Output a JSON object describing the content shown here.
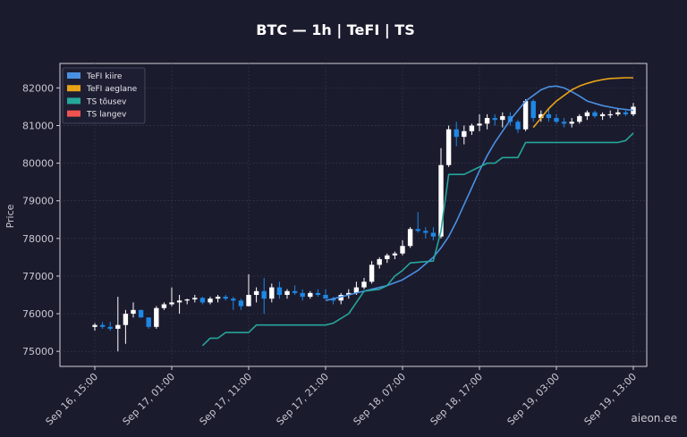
{
  "chart_data": {
    "type": "candlestick",
    "title": "BTC — 1h  |  TeFI  |  TS",
    "ylabel": "Price",
    "xlabel": "",
    "ylim": [
      74600,
      82650
    ],
    "y_ticks": [
      75000,
      76000,
      77000,
      78000,
      79000,
      80000,
      81000,
      82000
    ],
    "x_ticks": [
      "Sep 16, 15:00",
      "Sep 17, 01:00",
      "Sep 17, 11:00",
      "Sep 17, 21:00",
      "Sep 18, 07:00",
      "Sep 18, 17:00",
      "Sep 19, 03:00",
      "Sep 19, 13:00"
    ],
    "x_tick_index": [
      0,
      10,
      20,
      30,
      40,
      50,
      60,
      70
    ],
    "grid": true,
    "legend_position": "top-left",
    "legend": [
      {
        "label": "TeFI kiire",
        "color": "#4a90e2"
      },
      {
        "label": "TeFI aeglane",
        "color": "#e8a317"
      },
      {
        "label": "TS tõusev",
        "color": "#26a69a"
      },
      {
        "label": "TS langev",
        "color": "#ef5350"
      }
    ],
    "candle_colors": {
      "up": "#ffffff",
      "down": "#1e88e5"
    },
    "candles": [
      [
        75650,
        75750,
        75550,
        75700
      ],
      [
        75700,
        75780,
        75600,
        75650
      ],
      [
        75650,
        75780,
        75550,
        75600
      ],
      [
        75600,
        76450,
        75000,
        75700
      ],
      [
        75700,
        76100,
        75200,
        76000
      ],
      [
        76000,
        76300,
        75900,
        76100
      ],
      [
        76100,
        76100,
        75900,
        75900
      ],
      [
        75900,
        75900,
        75600,
        75650
      ],
      [
        75650,
        76200,
        75600,
        76150
      ],
      [
        76150,
        76300,
        76100,
        76250
      ],
      [
        76250,
        76700,
        76200,
        76300
      ],
      [
        76300,
        76500,
        76000,
        76350
      ],
      [
        76350,
        76400,
        76250,
        76380
      ],
      [
        76380,
        76500,
        76300,
        76420
      ],
      [
        76420,
        76450,
        76250,
        76300
      ],
      [
        76300,
        76450,
        76250,
        76400
      ],
      [
        76400,
        76500,
        76300,
        76450
      ],
      [
        76450,
        76500,
        76350,
        76400
      ],
      [
        76400,
        76450,
        76100,
        76350
      ],
      [
        76350,
        76400,
        76100,
        76200
      ],
      [
        76200,
        77050,
        76200,
        76500
      ],
      [
        76500,
        76700,
        76300,
        76600
      ],
      [
        76600,
        76950,
        76000,
        76400
      ],
      [
        76400,
        76800,
        76300,
        76700
      ],
      [
        76700,
        76850,
        76400,
        76500
      ],
      [
        76500,
        76650,
        76400,
        76600
      ],
      [
        76600,
        76750,
        76500,
        76550
      ],
      [
        76550,
        76650,
        76350,
        76450
      ],
      [
        76450,
        76600,
        76400,
        76550
      ],
      [
        76550,
        76650,
        76450,
        76500
      ],
      [
        76500,
        76650,
        76400,
        76400
      ],
      [
        76400,
        76450,
        76250,
        76350
      ],
      [
        76350,
        76550,
        76250,
        76500
      ],
      [
        76500,
        76650,
        76400,
        76550
      ],
      [
        76550,
        76850,
        76500,
        76700
      ],
      [
        76700,
        76950,
        76650,
        76850
      ],
      [
        76850,
        77400,
        76800,
        77300
      ],
      [
        77300,
        77500,
        77200,
        77450
      ],
      [
        77450,
        77600,
        77350,
        77550
      ],
      [
        77550,
        77650,
        77450,
        77600
      ],
      [
        77600,
        77950,
        77550,
        77800
      ],
      [
        77800,
        78300,
        77750,
        78250
      ],
      [
        78250,
        78700,
        78150,
        78200
      ],
      [
        78200,
        78300,
        78000,
        78150
      ],
      [
        78150,
        78300,
        77950,
        78050
      ],
      [
        78050,
        80400,
        78000,
        79950
      ],
      [
        79950,
        81000,
        79900,
        80900
      ],
      [
        80900,
        81100,
        80450,
        80700
      ],
      [
        80700,
        81000,
        80500,
        80850
      ],
      [
        80850,
        81050,
        80750,
        81000
      ],
      [
        81000,
        81300,
        80850,
        81050
      ],
      [
        81050,
        81300,
        80900,
        81200
      ],
      [
        81200,
        81300,
        81000,
        81150
      ],
      [
        81150,
        81350,
        80950,
        81250
      ],
      [
        81250,
        81350,
        81000,
        81100
      ],
      [
        81100,
        81150,
        80800,
        80900
      ],
      [
        80900,
        81700,
        80850,
        81650
      ],
      [
        81650,
        81700,
        81100,
        81200
      ],
      [
        81200,
        81400,
        81100,
        81300
      ],
      [
        81300,
        81450,
        81100,
        81200
      ],
      [
        81200,
        81300,
        81050,
        81100
      ],
      [
        81100,
        81200,
        80950,
        81050
      ],
      [
        81050,
        81200,
        80950,
        81100
      ],
      [
        81100,
        81300,
        81050,
        81250
      ],
      [
        81250,
        81400,
        81150,
        81350
      ],
      [
        81350,
        81400,
        81200,
        81250
      ],
      [
        81250,
        81350,
        81150,
        81300
      ],
      [
        81300,
        81400,
        81200,
        81300
      ],
      [
        81300,
        81450,
        81250,
        81350
      ],
      [
        81350,
        81400,
        81250,
        81300
      ],
      [
        81300,
        81600,
        81250,
        81500
      ]
    ],
    "series": [
      {
        "name": "TeFI kiire",
        "color": "#4a90e2",
        "points": [
          [
            30,
            76350
          ],
          [
            32,
            76450
          ],
          [
            34,
            76550
          ],
          [
            36,
            76650
          ],
          [
            38,
            76750
          ],
          [
            40,
            76900
          ],
          [
            42,
            77150
          ],
          [
            44,
            77500
          ],
          [
            45,
            77750
          ],
          [
            46,
            78050
          ],
          [
            47,
            78450
          ],
          [
            48,
            78900
          ],
          [
            49,
            79350
          ],
          [
            50,
            79800
          ],
          [
            51,
            80200
          ],
          [
            52,
            80550
          ],
          [
            53,
            80850
          ],
          [
            54,
            81150
          ],
          [
            55,
            81400
          ],
          [
            56,
            81650
          ],
          [
            57,
            81800
          ],
          [
            58,
            81950
          ],
          [
            59,
            82030
          ],
          [
            60,
            82050
          ],
          [
            61,
            82000
          ],
          [
            62,
            81900
          ],
          [
            63,
            81780
          ],
          [
            64,
            81650
          ],
          [
            66,
            81530
          ],
          [
            68,
            81450
          ],
          [
            70,
            81400
          ]
        ]
      },
      {
        "name": "TeFI aeglane",
        "color": "#e8a317",
        "points": [
          [
            57,
            80950
          ],
          [
            58,
            81200
          ],
          [
            59,
            81450
          ],
          [
            60,
            81650
          ],
          [
            61,
            81800
          ],
          [
            62,
            81950
          ],
          [
            63,
            82050
          ],
          [
            64,
            82120
          ],
          [
            65,
            82180
          ],
          [
            66,
            82220
          ],
          [
            67,
            82250
          ],
          [
            68,
            82260
          ],
          [
            69,
            82270
          ],
          [
            70,
            82270
          ]
        ]
      },
      {
        "name": "TS tõusev",
        "color": "#26a69a",
        "points": [
          [
            14,
            75150
          ],
          [
            15,
            75350
          ],
          [
            16,
            75350
          ],
          [
            17,
            75500
          ],
          [
            19,
            75500
          ],
          [
            20,
            75500
          ],
          [
            21,
            75700
          ],
          [
            25,
            75700
          ],
          [
            30,
            75700
          ],
          [
            31,
            75750
          ],
          [
            33,
            76000
          ],
          [
            34,
            76300
          ],
          [
            35,
            76600
          ],
          [
            37,
            76650
          ],
          [
            38,
            76750
          ],
          [
            39,
            77000
          ],
          [
            40,
            77150
          ],
          [
            41,
            77350
          ],
          [
            44,
            77400
          ],
          [
            45,
            78200
          ],
          [
            46,
            79700
          ],
          [
            48,
            79700
          ],
          [
            49,
            79800
          ],
          [
            51,
            80000
          ],
          [
            52,
            80000
          ],
          [
            53,
            80150
          ],
          [
            55,
            80150
          ],
          [
            56,
            80550
          ],
          [
            60,
            80550
          ],
          [
            67,
            80550
          ],
          [
            68,
            80550
          ],
          [
            69,
            80600
          ],
          [
            70,
            80800
          ]
        ]
      },
      {
        "name": "TS langev",
        "color": "#ef5350",
        "points": []
      }
    ]
  },
  "watermark": "aieon.ee"
}
